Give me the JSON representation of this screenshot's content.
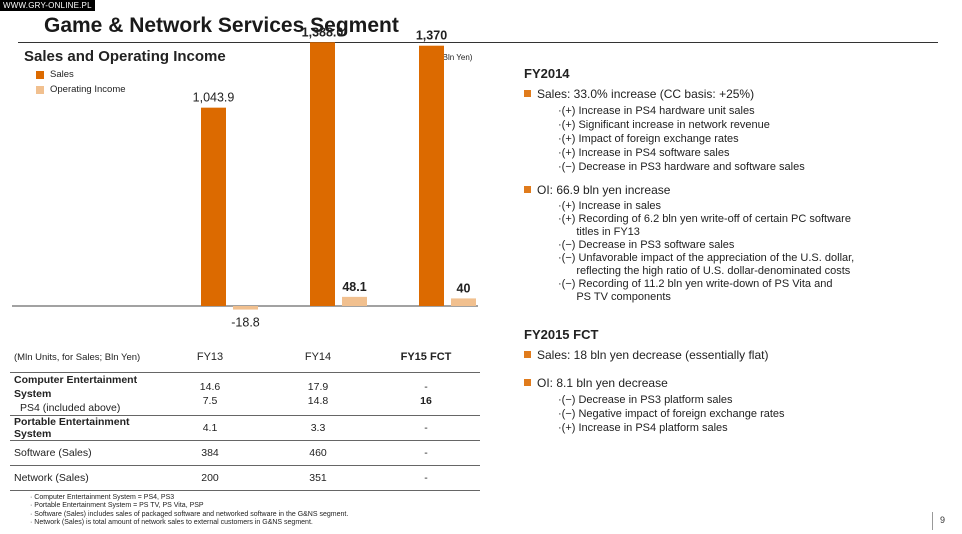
{
  "watermark": "WWW.GRY-ONLINE.PL",
  "slide_title": "Game & Network Services Segment",
  "page_number": "9",
  "colors": {
    "sales": "#dc6a00",
    "operating_income": "#f1c08f",
    "bullet": "#e07b1c"
  },
  "chart_data": {
    "type": "bar",
    "title": "Sales and Operating Income",
    "unit_label": "(Bln Yen)",
    "categories": [
      "FY13",
      "FY14",
      "FY15 FCT"
    ],
    "series": [
      {
        "name": "Sales",
        "values": [
          1043.9,
          1388.0,
          1370
        ],
        "labels": [
          "1,043.9",
          "1,388.0",
          "1,370"
        ]
      },
      {
        "name": "Operating Income",
        "values": [
          -18.8,
          48.1,
          40
        ],
        "labels": [
          "-18.8",
          "48.1",
          "40"
        ]
      }
    ],
    "legend_placement": "top-left"
  },
  "table": {
    "unit_header": "(Mln Units, for Sales; Bln Yen)",
    "columns": [
      "FY13",
      "FY14",
      "FY15 FCT"
    ],
    "rows": {
      "ces": {
        "label": "Computer Entertainment System",
        "values": [
          "14.6",
          "17.9",
          "-"
        ]
      },
      "ps4": {
        "label": "PS4 (included above)",
        "values": [
          "7.5",
          "14.8",
          "16"
        ]
      },
      "pes": {
        "label": "Portable Entertainment System",
        "values": [
          "4.1",
          "3.3",
          "-"
        ]
      },
      "software": {
        "label": "Software (Sales)",
        "values": [
          "384",
          "460",
          "-"
        ]
      },
      "network": {
        "label": "Network (Sales)",
        "values": [
          "200",
          "351",
          "-"
        ]
      }
    }
  },
  "notes": [
    "· Computer Entertainment System = PS4, PS3",
    "· Portable Entertainment System = PS TV, PS Vita, PSP",
    "· Software (Sales) includes sales of packaged software and networked software in the G&NS segment.",
    "· Network (Sales) is total amount of network sales to external customers in G&NS segment."
  ],
  "fy2014": {
    "title": "FY2014",
    "sales_bullet": "Sales: 33.0% increase (CC basis:  +25%)",
    "sales_items": [
      "·(+) Increase in PS4 hardware unit sales",
      "·(+) Significant increase in network revenue",
      "·(+) Impact of foreign exchange rates",
      "·(+) Increase in PS4 software sales",
      "·(−) Decrease in PS3 hardware and software sales"
    ],
    "oi_bullet": "OI:  66.9 bln yen increase",
    "oi_items": [
      "·(+) Increase in sales",
      "·(+) Recording of 6.2 bln yen write-off of certain PC software",
      "      titles in FY13",
      "·(−) Decrease in PS3 software sales",
      "·(−) Unfavorable impact of the appreciation of the U.S. dollar,",
      "      reflecting the high ratio of U.S. dollar-denominated costs",
      "·(−) Recording of 11.2 bln yen write-down of PS Vita and",
      "      PS TV components"
    ]
  },
  "fy2015": {
    "title": "FY2015 FCT",
    "sales_bullet": "Sales: 18 bln yen decrease (essentially flat)",
    "oi_bullet": "OI: 8.1 bln yen decrease",
    "oi_items": [
      "·(−) Decrease in PS3 platform sales",
      "·(−) Negative impact of foreign exchange rates",
      "·(+) Increase in PS4 platform sales"
    ]
  }
}
